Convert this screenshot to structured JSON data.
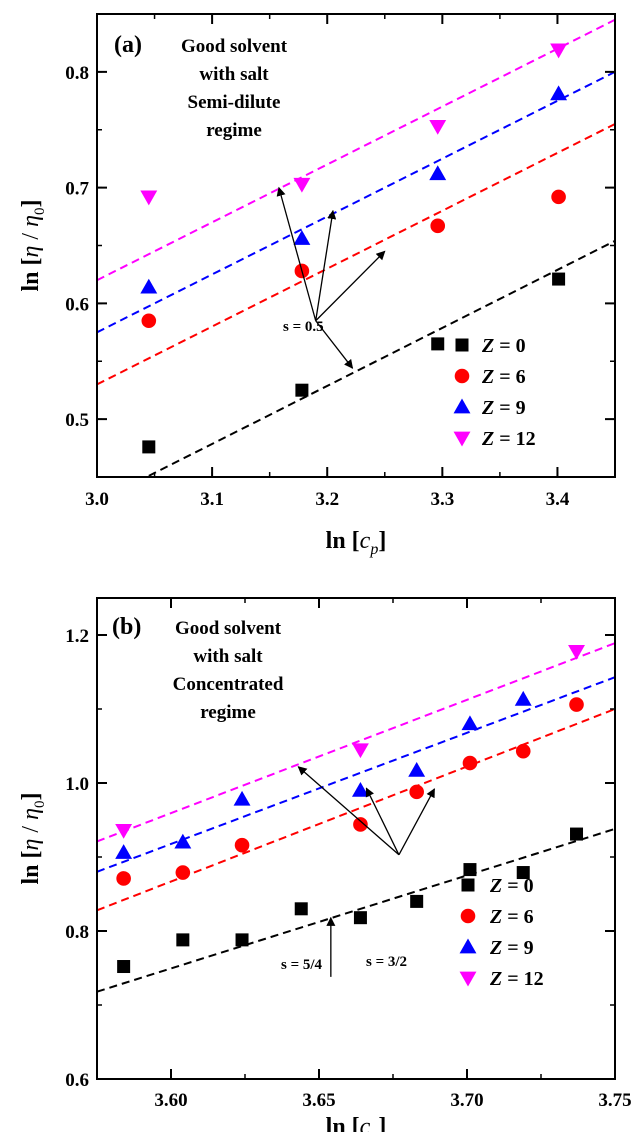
{
  "chart_data": [
    {
      "type": "scatter",
      "panel_label": "(a)",
      "annotation": [
        "Good solvent",
        "with salt",
        "Semi-dilute",
        "regime"
      ],
      "xlabel": {
        "prefix": "ln [",
        "var": "c",
        "sub": "p",
        "suffix": "]"
      },
      "ylabel": {
        "prefix": "ln [",
        "eta": "η",
        "slash": " / ",
        "eta0": "η",
        "sub": "0",
        "suffix": "]"
      },
      "xlim": [
        3.0,
        3.45
      ],
      "ylim": [
        0.45,
        0.85
      ],
      "xticks": [
        3.0,
        3.1,
        3.2,
        3.3,
        3.4
      ],
      "xtick_labels": [
        "3.0",
        "3.1",
        "3.2",
        "3.3",
        "3.4"
      ],
      "yticks": [
        0.5,
        0.6,
        0.7,
        0.8
      ],
      "ytick_labels": [
        "0.5",
        "0.6",
        "0.7",
        "0.8"
      ],
      "x_minor": 0.05,
      "y_minor": 0.05,
      "legend_position": "bottom-right",
      "slope_label": "s = 0.5",
      "series": [
        {
          "name_var": "Z",
          "name_val": " = 0",
          "marker": "square",
          "color": "#000000",
          "x": [
            3.045,
            3.178,
            3.296,
            3.401
          ],
          "y": [
            0.476,
            0.525,
            0.565,
            0.621
          ],
          "fit": [
            [
              3.045,
              0.451
            ],
            [
              3.45,
              0.654
            ]
          ]
        },
        {
          "name_var": "Z",
          "name_val": " = 6",
          "marker": "circle",
          "color": "#ff0000",
          "x": [
            3.045,
            3.178,
            3.296,
            3.401
          ],
          "y": [
            0.585,
            0.628,
            0.667,
            0.692
          ],
          "fit": [
            [
              3.0,
              0.53
            ],
            [
              3.45,
              0.755
            ]
          ]
        },
        {
          "name_var": "Z",
          "name_val": " = 9",
          "marker": "triangle-up",
          "color": "#0000ff",
          "x": [
            3.045,
            3.178,
            3.296,
            3.401
          ],
          "y": [
            0.614,
            0.656,
            0.712,
            0.781
          ],
          "fit": [
            [
              3.0,
              0.575
            ],
            [
              3.45,
              0.8
            ]
          ]
        },
        {
          "name_var": "Z",
          "name_val": " = 12",
          "marker": "triangle-down",
          "color": "#ff00ff",
          "x": [
            3.045,
            3.178,
            3.296,
            3.401
          ],
          "y": [
            0.692,
            0.703,
            0.753,
            0.819
          ],
          "fit": [
            [
              3.0,
              0.62
            ],
            [
              3.45,
              0.845
            ]
          ]
        }
      ],
      "slope_arrows": {
        "origin": [
          3.19,
          0.585
        ],
        "targets": [
          [
            3.158,
            0.7
          ],
          [
            3.205,
            0.68
          ],
          [
            3.25,
            0.645
          ],
          [
            3.222,
            0.544
          ]
        ]
      }
    },
    {
      "type": "scatter",
      "panel_label": "(b)",
      "annotation": [
        "Good solvent",
        "with salt",
        "Concentrated",
        "regime"
      ],
      "xlabel": {
        "prefix": "ln [",
        "var": "c",
        "sub": "p",
        "suffix": "]"
      },
      "ylabel": {
        "prefix": "ln [",
        "eta": "η",
        "slash": " / ",
        "eta0": "η",
        "sub": "0",
        "suffix": "]"
      },
      "xlim": [
        3.575,
        3.75
      ],
      "ylim": [
        0.6,
        1.25
      ],
      "xticks": [
        3.6,
        3.65,
        3.7,
        3.75
      ],
      "xtick_labels": [
        "3.60",
        "3.65",
        "3.70",
        "3.75"
      ],
      "yticks": [
        0.6,
        0.8,
        1.0,
        1.2
      ],
      "ytick_labels": [
        "0.6",
        "0.8",
        "1.0",
        "1.2"
      ],
      "x_minor": 0.025,
      "y_minor": 0.1,
      "legend_position": "bottom-right",
      "slope_label": "s = 3/2",
      "slope_label_2": "s = 5/4",
      "series": [
        {
          "name_var": "Z",
          "name_val": " = 0",
          "marker": "square",
          "color": "#000000",
          "x": [
            3.584,
            3.604,
            3.624,
            3.644,
            3.664,
            3.683,
            3.701,
            3.719,
            3.737
          ],
          "y": [
            0.752,
            0.788,
            0.788,
            0.83,
            0.818,
            0.84,
            0.883,
            0.879,
            0.931
          ],
          "fit": [
            [
              3.575,
              0.718
            ],
            [
              3.75,
              0.938
            ]
          ]
        },
        {
          "name_var": "Z",
          "name_val": " = 6",
          "marker": "circle",
          "color": "#ff0000",
          "x": [
            3.584,
            3.604,
            3.624,
            3.664,
            3.683,
            3.701,
            3.719,
            3.737
          ],
          "y": [
            0.871,
            0.879,
            0.916,
            0.944,
            0.988,
            1.027,
            1.043,
            1.106
          ],
          "fit": [
            [
              3.575,
              0.828
            ],
            [
              3.75,
              1.1
            ]
          ]
        },
        {
          "name_var": "Z",
          "name_val": " = 9",
          "marker": "triangle-up",
          "color": "#0000ff",
          "x": [
            3.584,
            3.604,
            3.624,
            3.664,
            3.683,
            3.701,
            3.719
          ],
          "y": [
            0.906,
            0.92,
            0.978,
            0.99,
            1.017,
            1.08,
            1.113
          ],
          "fit": [
            [
              3.575,
              0.88
            ],
            [
              3.75,
              1.143
            ]
          ]
        },
        {
          "name_var": "Z",
          "name_val": " = 12",
          "marker": "triangle-down",
          "color": "#ff00ff",
          "x": [
            3.584,
            3.664,
            3.737
          ],
          "y": [
            0.936,
            1.045,
            1.178
          ],
          "fit": [
            [
              3.575,
              0.921
            ],
            [
              3.75,
              1.189
            ]
          ]
        }
      ],
      "slope_arrows": {
        "origin": [
          3.677,
          0.903
        ],
        "targets": [
          [
            3.643,
            1.022
          ],
          [
            3.666,
            0.993
          ],
          [
            3.689,
            0.992
          ]
        ]
      },
      "slope_arrow_2": {
        "from": [
          3.654,
          0.738
        ],
        "to": [
          3.654,
          0.818
        ]
      }
    }
  ]
}
